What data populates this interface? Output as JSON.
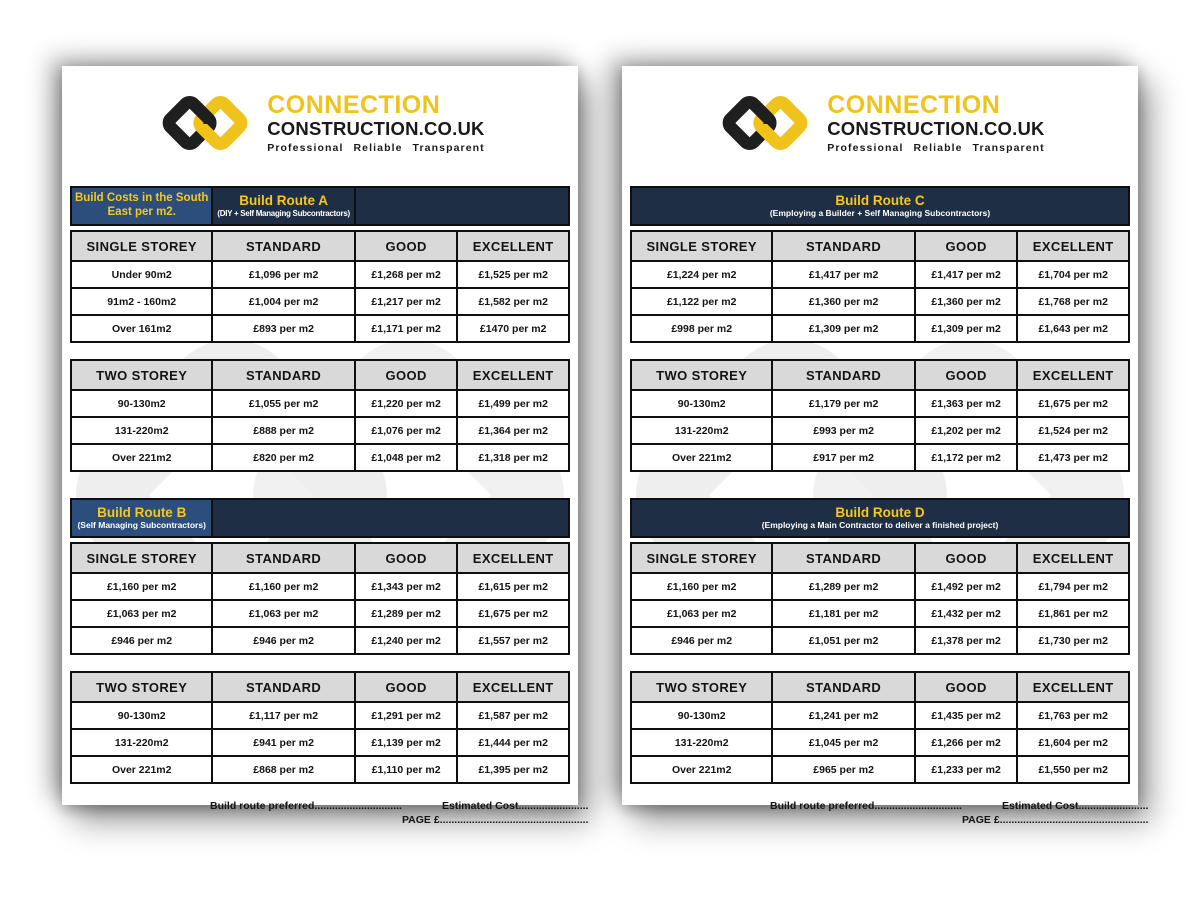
{
  "brand": {
    "line1": "CONNECTION",
    "line2": "CONSTRUCTION.CO.UK",
    "tagline": "Professional Reliable Transparent",
    "logo_yellow": "#f0c31c",
    "logo_black": "#1f1f1f"
  },
  "colors": {
    "header_navy": "#1e2e44",
    "header_blue": "#2b4e7d",
    "header_gold_text": "#f6c81c",
    "column_header_gray": "#d9d9d9"
  },
  "labels": {
    "standard": "STANDARD",
    "good": "GOOD",
    "excellent": "EXCELLENT"
  },
  "footer": {
    "build_route_preferred": "Build route preferred..............................",
    "estimated_cost": "Estimated Cost........................",
    "page_cost": "PAGE £..................................................."
  },
  "pages": [
    {
      "routes": [
        {
          "header_style": "corner",
          "corner_title": "Build Costs in the South East per m2.",
          "title": "Build Route A",
          "subtitle": "(DIY + Self Managing Subcontractors)",
          "tables": [
            {
              "storey": "SINGLE STOREY",
              "rows": [
                [
                  "Under 90m2",
                  "£1,096 per m2",
                  "£1,268 per m2",
                  "£1,525 per m2"
                ],
                [
                  "91m2 - 160m2",
                  "£1,004 per m2",
                  "£1,217 per m2",
                  "£1,582 per m2"
                ],
                [
                  "Over 161m2",
                  "£893 per m2",
                  "£1,171 per m2",
                  "£1470 per m2"
                ]
              ]
            },
            {
              "storey": "TWO STOREY",
              "rows": [
                [
                  "90-130m2",
                  "£1,055 per m2",
                  "£1,220 per m2",
                  "£1,499 per m2"
                ],
                [
                  "131-220m2",
                  "£888 per m2",
                  "£1,076 per m2",
                  "£1,364 per m2"
                ],
                [
                  "Over 221m2",
                  "£820 per m2",
                  "£1,048 per m2",
                  "£1,318 per m2"
                ]
              ]
            }
          ]
        },
        {
          "header_style": "first",
          "title": "Build Route B",
          "subtitle": "(Self Managing Subcontractors)",
          "tables": [
            {
              "storey": "SINGLE STOREY",
              "rows": [
                [
                  "£1,160 per m2",
                  "£1,160 per m2",
                  "£1,343 per m2",
                  "£1,615 per m2"
                ],
                [
                  "£1,063 per m2",
                  "£1,063 per m2",
                  "£1,289 per m2",
                  "£1,675 per m2"
                ],
                [
                  "£946 per m2",
                  "£946 per m2",
                  "£1,240 per m2",
                  "£1,557 per m2"
                ]
              ]
            },
            {
              "storey": "TWO STOREY",
              "rows": [
                [
                  "90-130m2",
                  "£1,117 per m2",
                  "£1,291 per m2",
                  "£1,587 per m2"
                ],
                [
                  "131-220m2",
                  "£941 per m2",
                  "£1,139 per m2",
                  "£1,444 per m2"
                ],
                [
                  "Over 221m2",
                  "£868 per m2",
                  "£1,110 per m2",
                  "£1,395 per m2"
                ]
              ]
            }
          ]
        }
      ]
    },
    {
      "routes": [
        {
          "header_style": "full",
          "title": "Build Route C",
          "subtitle": "(Employing a Builder + Self Managing Subcontractors)",
          "tables": [
            {
              "storey": "SINGLE STOREY",
              "rows": [
                [
                  "£1,224 per m2",
                  "£1,417 per m2",
                  "£1,417 per m2",
                  "£1,704 per m2"
                ],
                [
                  "£1,122 per m2",
                  "£1,360 per m2",
                  "£1,360 per m2",
                  "£1,768 per m2"
                ],
                [
                  "£998 per m2",
                  "£1,309 per m2",
                  "£1,309 per m2",
                  "£1,643 per m2"
                ]
              ]
            },
            {
              "storey": "TWO STOREY",
              "rows": [
                [
                  "90-130m2",
                  "£1,179 per m2",
                  "£1,363 per m2",
                  "£1,675 per m2"
                ],
                [
                  "131-220m2",
                  "£993 per m2",
                  "£1,202 per m2",
                  "£1,524 per m2"
                ],
                [
                  "Over 221m2",
                  "£917 per m2",
                  "£1,172 per m2",
                  "£1,473 per m2"
                ]
              ]
            }
          ]
        },
        {
          "header_style": "full",
          "title": "Build Route D",
          "subtitle": "(Employing a Main Contractor to deliver a finished project)",
          "tables": [
            {
              "storey": "SINGLE STOREY",
              "rows": [
                [
                  "£1,160 per m2",
                  "£1,289 per m2",
                  "£1,492 per m2",
                  "£1,794 per m2"
                ],
                [
                  "£1,063 per m2",
                  "£1,181 per m2",
                  "£1,432 per m2",
                  "£1,861 per m2"
                ],
                [
                  "£946 per m2",
                  "£1,051 per m2",
                  "£1,378 per m2",
                  "£1,730 per m2"
                ]
              ]
            },
            {
              "storey": "TWO STOREY",
              "rows": [
                [
                  "90-130m2",
                  "£1,241 per m2",
                  "£1,435 per m2",
                  "£1,763 per m2"
                ],
                [
                  "131-220m2",
                  "£1,045 per m2",
                  "£1,266 per m2",
                  "£1,604 per m2"
                ],
                [
                  "Over 221m2",
                  "£965 per m2",
                  "£1,233 per m2",
                  "£1,550 per m2"
                ]
              ]
            }
          ]
        }
      ]
    }
  ]
}
